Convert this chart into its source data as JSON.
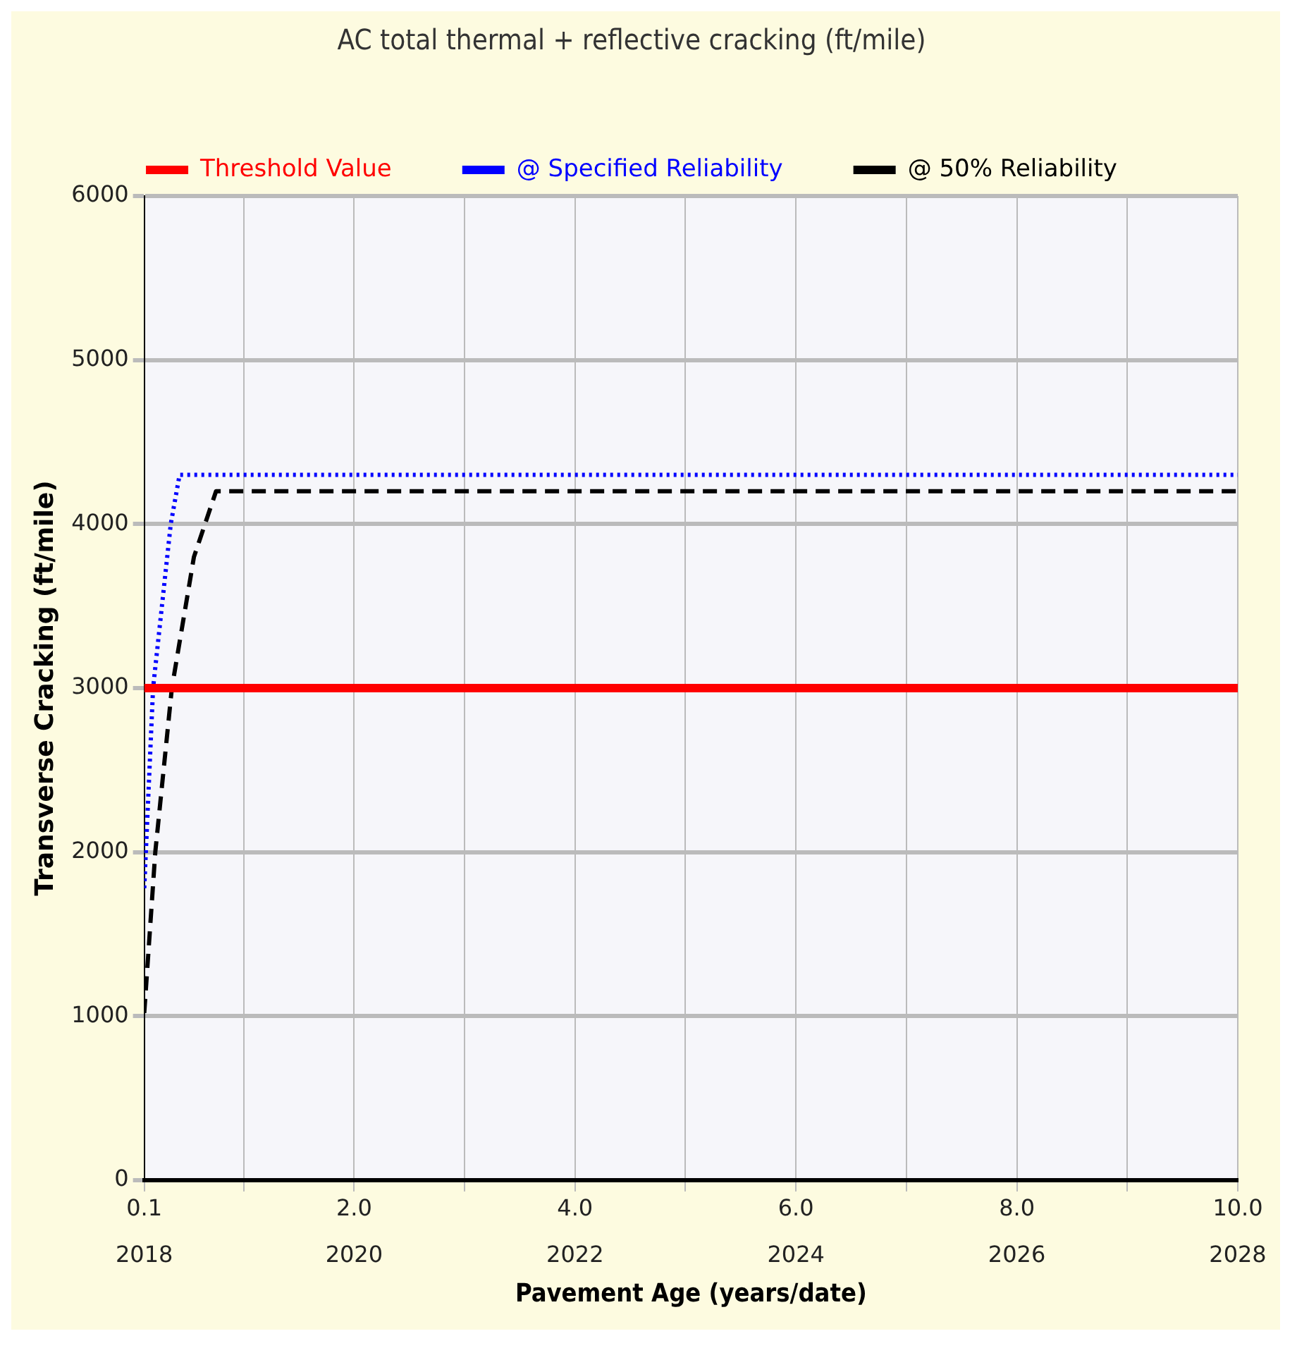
{
  "chart_data": {
    "type": "line",
    "title": "AC total thermal + reflective cracking (ft/mile)",
    "xlabel": "Pavement Age (years/date)",
    "ylabel": "Transverse Cracking (ft/mile)",
    "xlim": [
      0.1,
      10
    ],
    "xticks": [
      0.1,
      {
        "value": 1,
        "label": null
      },
      {
        "value": 2,
        "label": "2.0"
      },
      {
        "value": 3,
        "label": null
      },
      {
        "value": 4,
        "label": "4.0"
      },
      {
        "value": 5,
        "label": null
      },
      {
        "value": 6,
        "label": "6.0"
      },
      {
        "value": 7,
        "label": null
      },
      {
        "value": 8,
        "label": "8.0"
      },
      {
        "value": 9,
        "label": null
      },
      {
        "value": 10,
        "label": "10.0"
      }
    ],
    "x2lim": [
      2018.1,
      2028
    ],
    "x2ticks": [
      {
        "value": 2018.1,
        "label": "2018"
      },
      2020,
      2022,
      2024,
      2026,
      2028
    ],
    "ylim": [
      0,
      6000
    ],
    "yticks": [
      0,
      1000,
      2000,
      3000,
      4000,
      5000,
      6000
    ],
    "grid": true,
    "legend": "top",
    "marker": "none",
    "series": [
      {
        "name": "Threshold Value",
        "color": "#ff0000",
        "line_style": "solid",
        "x": [
          0.1,
          10
        ],
        "values": [
          3000,
          3000
        ]
      },
      {
        "name": "@ Specified Reliability",
        "color": "#0000ff",
        "line_style": "dotted",
        "x": [
          0.1,
          0.18,
          0.34,
          0.42,
          10
        ],
        "values": [
          1780,
          3000,
          4000,
          4300,
          4300
        ]
      },
      {
        "name": "@ 50% Reliability",
        "color": "#000000",
        "line_style": "dashed",
        "x": [
          0.1,
          0.2,
          0.35,
          0.55,
          0.75,
          10
        ],
        "values": [
          1020,
          2000,
          3000,
          3800,
          4200,
          4200
        ]
      }
    ]
  }
}
